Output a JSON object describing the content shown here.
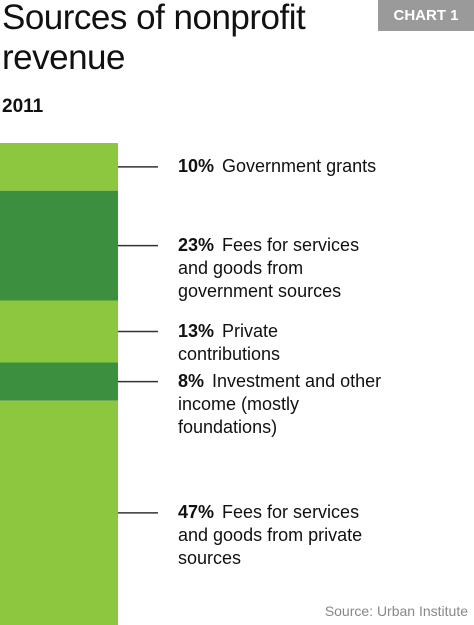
{
  "chart_data": {
    "type": "stacked-bar",
    "title": "Sources of nonprofit revenue",
    "subtitle": "2011",
    "badge": "CHART 1",
    "source": "Source: Urban Institute",
    "categories": [
      "Government grants",
      "Fees for services and goods from government sources",
      "Private contributions",
      "Investment and other income (mostly foundations)",
      "Fees for services and goods from private sources"
    ],
    "values": [
      10,
      23,
      13,
      8,
      47
    ],
    "value_labels": [
      "10%",
      "23%",
      "13%",
      "8%",
      "47%"
    ],
    "colors": [
      "#8dc63f",
      "#3b8f3e",
      "#8dc63f",
      "#3b8f3e",
      "#8dc63f"
    ]
  }
}
